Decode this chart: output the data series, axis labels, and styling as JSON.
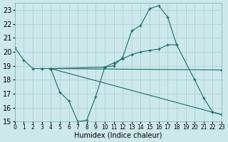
{
  "xlabel": "Humidex (Indice chaleur)",
  "xlim": [
    0,
    23
  ],
  "ylim": [
    15,
    23.5
  ],
  "yticks": [
    15,
    16,
    17,
    18,
    19,
    20,
    21,
    22,
    23
  ],
  "xticks": [
    0,
    1,
    2,
    3,
    4,
    5,
    6,
    7,
    8,
    9,
    10,
    11,
    12,
    13,
    14,
    15,
    16,
    17,
    18,
    19,
    20,
    21,
    22,
    23
  ],
  "bg_color": "#cce8ea",
  "grid_color": "#aacdd0",
  "line_color": "#1a6b6b",
  "line1_x": [
    0,
    1,
    2,
    3,
    4,
    5,
    6,
    7,
    8,
    9,
    10,
    11,
    12,
    13,
    14,
    15,
    16,
    17,
    18,
    20,
    21,
    22,
    23
  ],
  "line1_y": [
    20.3,
    19.4,
    18.8,
    18.8,
    18.8,
    17.1,
    16.5,
    15.0,
    15.1,
    16.8,
    18.9,
    19.0,
    19.6,
    21.5,
    21.9,
    23.1,
    23.3,
    22.5,
    20.5,
    18.0,
    16.7,
    15.7,
    15.5
  ],
  "line2_x": [
    4,
    10,
    11,
    12,
    13,
    14,
    15,
    16,
    17,
    18
  ],
  "line2_y": [
    18.8,
    18.9,
    19.2,
    19.5,
    19.8,
    20.0,
    20.1,
    20.2,
    20.5,
    20.5
  ],
  "line3_x": [
    4,
    23
  ],
  "line3_y": [
    18.8,
    18.7
  ],
  "line4_x": [
    4,
    23
  ],
  "line4_y": [
    18.8,
    15.5
  ]
}
